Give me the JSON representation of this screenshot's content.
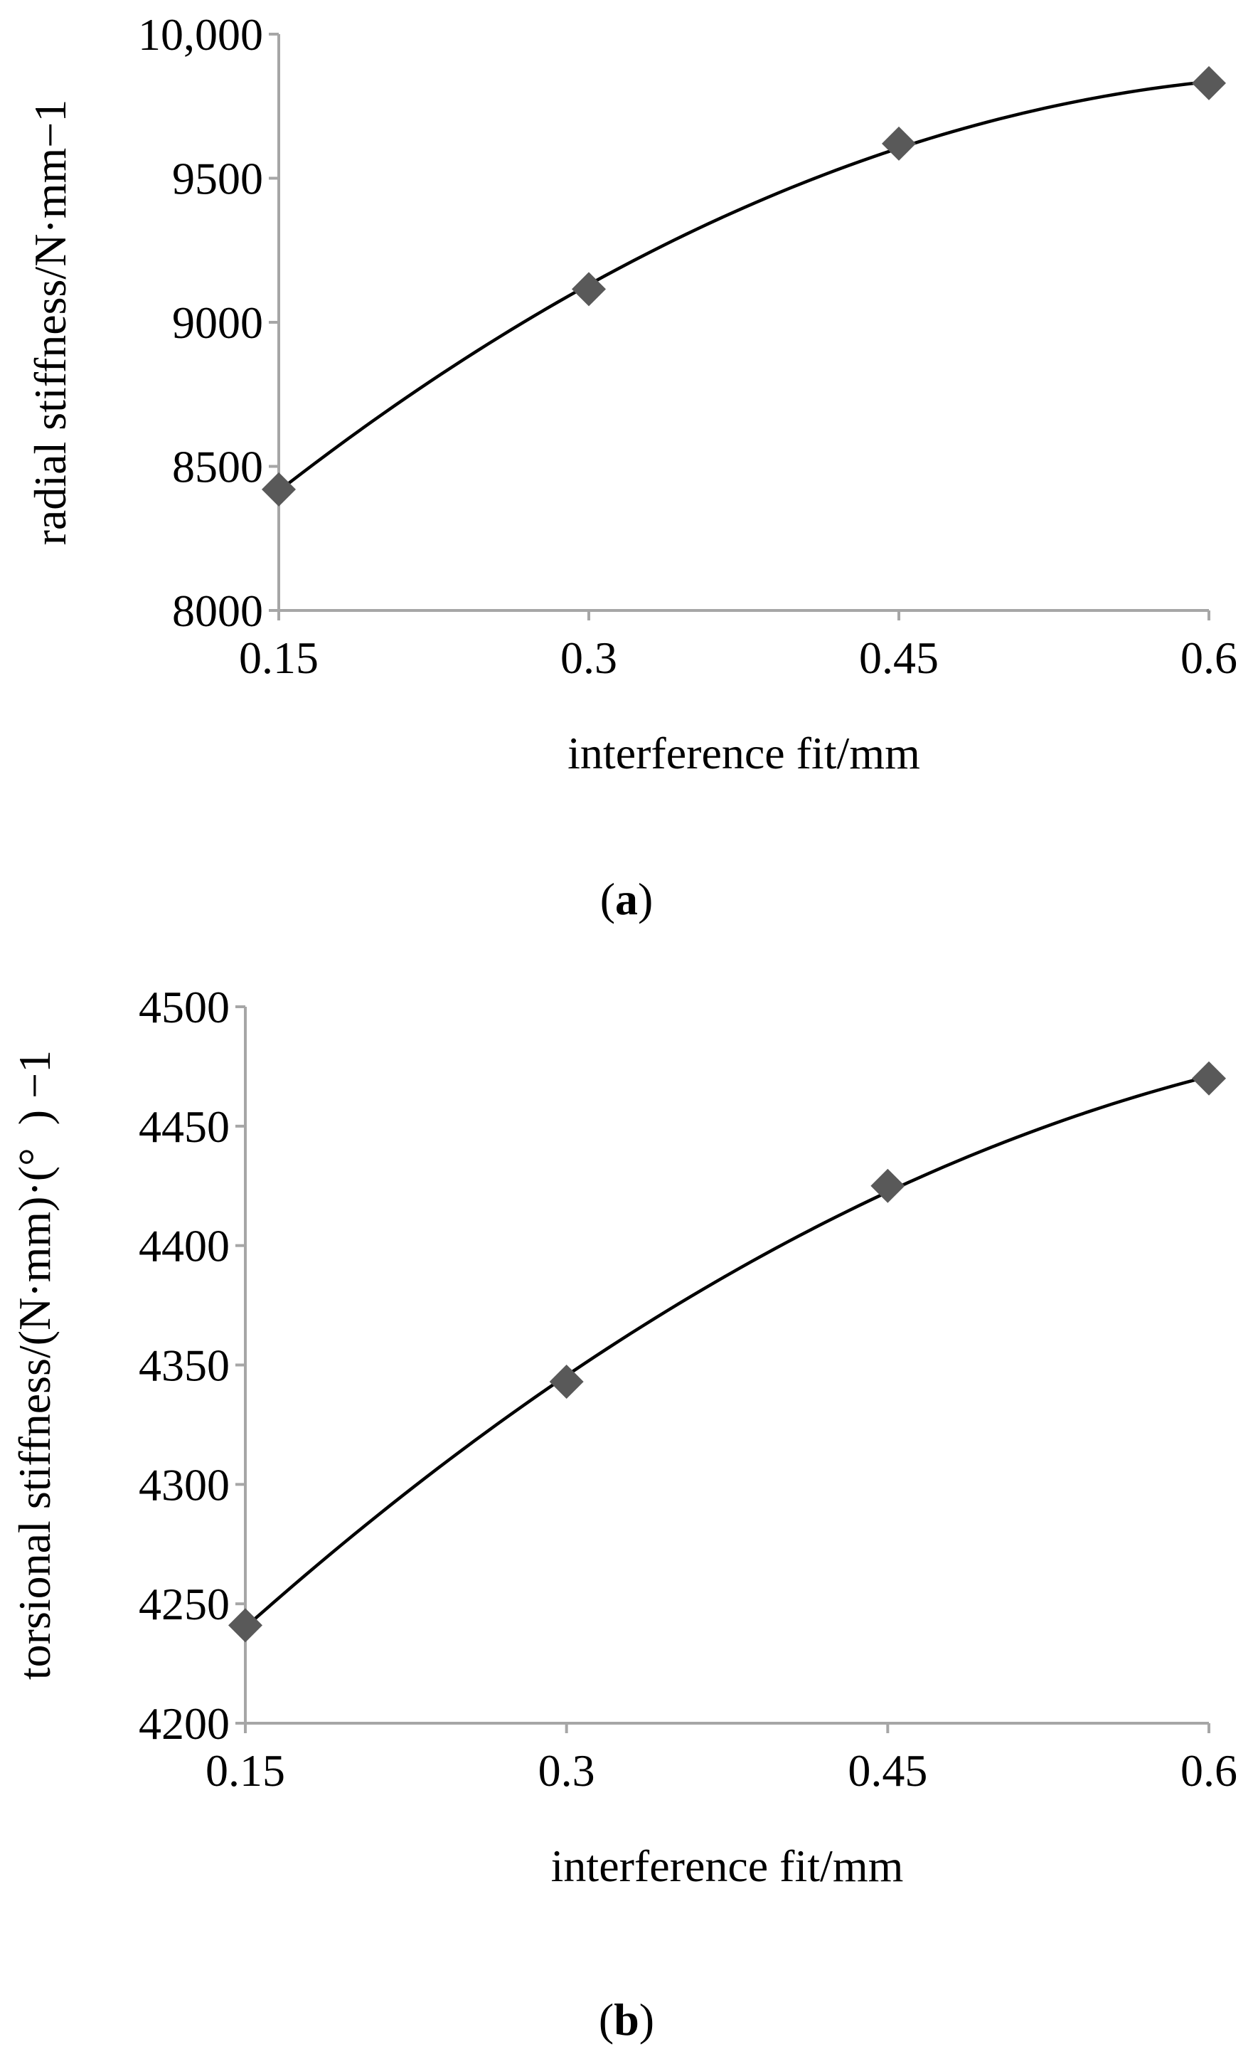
{
  "chart_data": [
    {
      "type": "scatter",
      "panel": "a",
      "caption_letter": "a",
      "x": [
        0.15,
        0.3,
        0.45,
        0.6
      ],
      "y": [
        8420,
        9115,
        9620,
        9830
      ],
      "xlabel": "interference fit/mm",
      "ylabel": "radial stiffness/N·mm−1",
      "xlim": [
        0.15,
        0.6
      ],
      "ylim": [
        8000,
        10000
      ],
      "xticks": [
        0.15,
        0.3,
        0.45,
        0.6
      ],
      "xtick_labels": [
        "0.15",
        "0.3",
        "0.45",
        "0.6"
      ],
      "yticks": [
        8000,
        8500,
        9000,
        9500,
        10000
      ],
      "ytick_labels": [
        "8000",
        "8500",
        "9000",
        "9500",
        "10,000"
      ],
      "trendline": "polynomial (order 2)",
      "marker": "diamond",
      "marker_color": "#595959",
      "line_color": "#000000",
      "grid": false
    },
    {
      "type": "scatter",
      "panel": "b",
      "caption_letter": "b",
      "x": [
        0.15,
        0.3,
        0.45,
        0.6
      ],
      "y": [
        4241,
        4343,
        4425,
        4470
      ],
      "xlabel": "interference fit/mm",
      "ylabel": "torsional stiffness/(N·mm)·(° ) −1",
      "xlim": [
        0.15,
        0.6
      ],
      "ylim": [
        4200,
        4500
      ],
      "xticks": [
        0.15,
        0.3,
        0.45,
        0.6
      ],
      "xtick_labels": [
        "0.15",
        "0.3",
        "0.45",
        "0.6"
      ],
      "yticks": [
        4200,
        4250,
        4300,
        4350,
        4400,
        4450,
        4500
      ],
      "ytick_labels": [
        "4200",
        "4250",
        "4300",
        "4350",
        "4400",
        "4450",
        "4500"
      ],
      "trendline": "polynomial (order 2)",
      "marker": "diamond",
      "marker_color": "#595959",
      "line_color": "#000000",
      "grid": false
    }
  ]
}
